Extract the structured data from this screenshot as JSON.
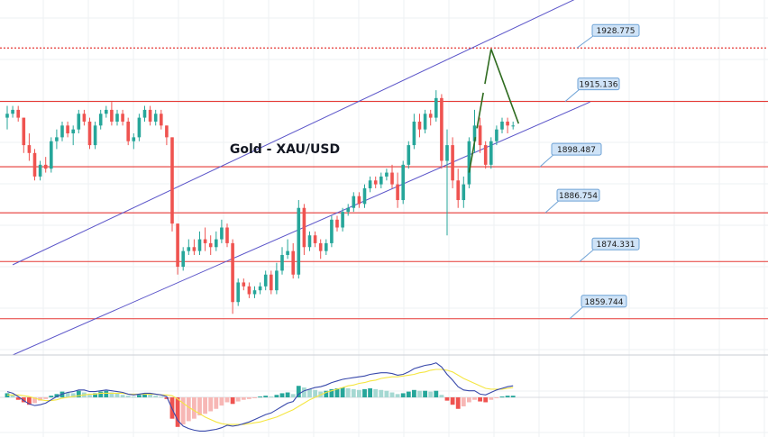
{
  "colors": {
    "background": "#ffffff",
    "grid": "#eef0f3",
    "level_line": "#e53935",
    "dotted_level": "#e53935",
    "channel": "#5b55c9",
    "forecast": "#2e6b1f",
    "bull": "#26a69a",
    "bear": "#ef5350",
    "label_fill": "#cfe3f7",
    "label_stroke": "#6fa3d6",
    "hist_pos": "#26a69a",
    "hist_pos_light": "#a5d8d2",
    "hist_neg": "#ef5350",
    "hist_neg_light": "#f7b7b5",
    "macd_line": "#3949ab",
    "signal_line": "#f5e642"
  },
  "chart_data": [
    {
      "type": "candlestick",
      "title": "Gold - XAU/USD",
      "ylim": [
        1850.5,
        1941
      ],
      "horizontal_levels": [
        1928.775,
        1915.136,
        1898.487,
        1886.754,
        1874.331,
        1859.744
      ],
      "level_labels": [
        "1928.775",
        "1915.136",
        "1898.487",
        "1886.754",
        "1874.331",
        "1859.744"
      ],
      "channel": {
        "upper": [
          [
            1,
            1873.5
          ],
          [
            106,
            1943
          ]
        ],
        "lower": [
          [
            1,
            1850.5
          ],
          [
            106,
            1915
          ]
        ]
      },
      "forecast_path": [
        [
          84,
          1897
        ],
        [
          88,
          1928.5
        ],
        [
          93,
          1909.5
        ]
      ],
      "candles": [
        [
          1911,
          1914,
          1908,
          1912
        ],
        [
          1912,
          1914,
          1911,
          1913
        ],
        [
          1913,
          1914,
          1910,
          1911
        ],
        [
          1911,
          1911,
          1902,
          1904
        ],
        [
          1904,
          1907,
          1900,
          1902
        ],
        [
          1902,
          1903,
          1895,
          1896
        ],
        [
          1896,
          1900,
          1895,
          1899
        ],
        [
          1899,
          1901,
          1897,
          1898
        ],
        [
          1898,
          1906,
          1897,
          1905
        ],
        [
          1905,
          1908,
          1903,
          1906
        ],
        [
          1906,
          1910,
          1905,
          1909
        ],
        [
          1909,
          1910,
          1906,
          1907
        ],
        [
          1907,
          1909,
          1904,
          1908
        ],
        [
          1908,
          1913,
          1907,
          1912
        ],
        [
          1912,
          1913,
          1909,
          1910
        ],
        [
          1910,
          1911,
          1903,
          1904
        ],
        [
          1904,
          1910,
          1903,
          1909
        ],
        [
          1909,
          1913,
          1908,
          1912
        ],
        [
          1912,
          1914,
          1911,
          1913
        ],
        [
          1913,
          1915,
          1909,
          1910
        ],
        [
          1910,
          1913,
          1909,
          1912
        ],
        [
          1912,
          1913,
          1909,
          1910
        ],
        [
          1910,
          1911,
          1904,
          1905
        ],
        [
          1905,
          1907,
          1903,
          1906
        ],
        [
          1906,
          1912,
          1905,
          1911
        ],
        [
          1911,
          1914,
          1910,
          1913
        ],
        [
          1913,
          1914,
          1909,
          1910
        ],
        [
          1910,
          1913,
          1909,
          1912
        ],
        [
          1912,
          1913,
          1908,
          1909
        ],
        [
          1909,
          1909,
          1904,
          1906
        ],
        [
          1906,
          1906,
          1882,
          1884
        ],
        [
          1884,
          1884,
          1871,
          1873
        ],
        [
          1873,
          1878,
          1872,
          1877
        ],
        [
          1877,
          1880,
          1876,
          1878
        ],
        [
          1878,
          1880,
          1876,
          1877
        ],
        [
          1877,
          1882,
          1876,
          1880
        ],
        [
          1880,
          1883,
          1877,
          1879
        ],
        [
          1879,
          1881,
          1876,
          1878
        ],
        [
          1878,
          1882,
          1877,
          1880
        ],
        [
          1880,
          1885,
          1879,
          1883
        ],
        [
          1883,
          1884,
          1878,
          1879
        ],
        [
          1879,
          1880,
          1861,
          1864
        ],
        [
          1864,
          1870,
          1863,
          1869
        ],
        [
          1869,
          1870,
          1867,
          1868
        ],
        [
          1868,
          1869,
          1865,
          1866
        ],
        [
          1866,
          1868,
          1865,
          1867
        ],
        [
          1867,
          1869,
          1866,
          1868
        ],
        [
          1868,
          1872,
          1867,
          1871
        ],
        [
          1871,
          1872,
          1866,
          1867
        ],
        [
          1867,
          1874,
          1866,
          1872
        ],
        [
          1872,
          1878,
          1871,
          1876
        ],
        [
          1876,
          1880,
          1875,
          1877
        ],
        [
          1877,
          1879,
          1870,
          1871
        ],
        [
          1871,
          1890,
          1870,
          1888
        ],
        [
          1888,
          1889,
          1876,
          1878
        ],
        [
          1878,
          1882,
          1877,
          1881
        ],
        [
          1881,
          1882,
          1878,
          1879
        ],
        [
          1879,
          1880,
          1875,
          1877
        ],
        [
          1877,
          1880,
          1876,
          1879
        ],
        [
          1879,
          1886,
          1878,
          1885
        ],
        [
          1885,
          1886,
          1882,
          1883
        ],
        [
          1883,
          1888,
          1882,
          1887
        ],
        [
          1887,
          1889,
          1886,
          1888
        ],
        [
          1888,
          1892,
          1887,
          1891
        ],
        [
          1891,
          1892,
          1888,
          1889
        ],
        [
          1889,
          1894,
          1888,
          1893
        ],
        [
          1893,
          1896,
          1892,
          1895
        ],
        [
          1895,
          1896,
          1893,
          1894
        ],
        [
          1894,
          1897,
          1893,
          1896
        ],
        [
          1896,
          1898,
          1895,
          1897
        ],
        [
          1897,
          1899,
          1893,
          1894
        ],
        [
          1894,
          1897,
          1888,
          1890
        ],
        [
          1890,
          1900,
          1889,
          1899
        ],
        [
          1899,
          1905,
          1898,
          1904
        ],
        [
          1904,
          1912,
          1903,
          1910
        ],
        [
          1910,
          1912,
          1906,
          1908
        ],
        [
          1908,
          1913,
          1907,
          1912
        ],
        [
          1912,
          1913,
          1909,
          1911
        ],
        [
          1911,
          1918,
          1910,
          1916
        ],
        [
          1916,
          1917,
          1898,
          1900
        ],
        [
          1900,
          1908,
          1881,
          1904
        ],
        [
          1904,
          1906,
          1893,
          1895
        ],
        [
          1895,
          1898,
          1888,
          1890
        ],
        [
          1890,
          1896,
          1888,
          1894
        ],
        [
          1894,
          1906,
          1893,
          1905
        ],
        [
          1905,
          1913,
          1902,
          1909
        ],
        [
          1909,
          1911,
          1902,
          1904
        ],
        [
          1904,
          1905,
          1898,
          1899
        ],
        [
          1899,
          1906,
          1898,
          1905
        ],
        [
          1905,
          1909,
          1904,
          1908
        ],
        [
          1908,
          1911,
          1907,
          1910
        ],
        [
          1910,
          1911,
          1907,
          1909
        ],
        [
          1909,
          1910,
          1908,
          1909
        ]
      ]
    },
    {
      "type": "macd",
      "histogram": [
        0.5,
        0.3,
        -0.3,
        -0.6,
        -0.9,
        -0.7,
        -0.4,
        -0.2,
        0.2,
        0.4,
        0.7,
        0.6,
        0.5,
        0.8,
        0.6,
        0.3,
        0.5,
        0.7,
        0.8,
        0.6,
        0.5,
        0.3,
        0.2,
        0.1,
        0.3,
        0.5,
        0.4,
        0.2,
        0.1,
        -0.2,
        -2.6,
        -3.6,
        -3.3,
        -2.9,
        -2.6,
        -2.2,
        -2.0,
        -1.7,
        -1.4,
        -1.0,
        -0.6,
        -0.8,
        -0.5,
        -0.3,
        -0.2,
        -0.1,
        0.1,
        0.2,
        0.1,
        0.3,
        0.5,
        0.6,
        0.4,
        1.4,
        1.2,
        1.0,
        0.9,
        0.7,
        0.8,
        1.0,
        1.1,
        1.2,
        1.1,
        1.0,
        0.9,
        1.0,
        1.1,
        1.0,
        0.9,
        0.8,
        0.6,
        0.4,
        0.5,
        0.7,
        0.9,
        0.8,
        0.8,
        0.7,
        0.8,
        0.3,
        -0.4,
        -0.9,
        -1.4,
        -1.1,
        -0.6,
        -0.3,
        -0.5,
        -0.6,
        -0.3,
        -0.1,
        0.1,
        0.2,
        0.2
      ],
      "macd_line": [
        0.7,
        0.5,
        0.1,
        -0.4,
        -0.8,
        -1.0,
        -0.9,
        -0.7,
        -0.3,
        0.1,
        0.4,
        0.6,
        0.7,
        0.9,
        0.9,
        0.7,
        0.7,
        0.8,
        0.9,
        0.8,
        0.7,
        0.6,
        0.4,
        0.3,
        0.4,
        0.5,
        0.5,
        0.4,
        0.3,
        0.1,
        -1.4,
        -2.8,
        -3.5,
        -3.8,
        -4.0,
        -4.1,
        -4.1,
        -4.0,
        -3.9,
        -3.7,
        -3.4,
        -3.5,
        -3.4,
        -3.2,
        -3.0,
        -2.7,
        -2.4,
        -2.1,
        -1.9,
        -1.5,
        -1.1,
        -0.7,
        -0.5,
        0.4,
        0.8,
        1.0,
        1.2,
        1.3,
        1.5,
        1.8,
        2.0,
        2.2,
        2.3,
        2.4,
        2.5,
        2.6,
        2.8,
        2.9,
        3.0,
        3.0,
        2.9,
        2.7,
        2.8,
        3.1,
        3.5,
        3.7,
        3.9,
        4.0,
        4.2,
        3.7,
        2.8,
        2.1,
        1.3,
        0.9,
        0.8,
        0.8,
        0.4,
        0.3,
        0.6,
        0.9,
        1.1,
        1.3,
        1.4
      ],
      "signal_line": [
        0.3,
        0.3,
        0.3,
        0.2,
        0.1,
        -0.1,
        -0.3,
        -0.4,
        -0.4,
        -0.3,
        -0.1,
        0.0,
        0.1,
        0.2,
        0.3,
        0.4,
        0.4,
        0.5,
        0.5,
        0.5,
        0.5,
        0.5,
        0.4,
        0.4,
        0.4,
        0.4,
        0.4,
        0.4,
        0.3,
        0.3,
        0.2,
        -0.2,
        -0.7,
        -1.2,
        -1.6,
        -2.0,
        -2.4,
        -2.7,
        -3.0,
        -3.2,
        -3.3,
        -3.3,
        -3.3,
        -3.3,
        -3.2,
        -3.1,
        -3.0,
        -2.8,
        -2.6,
        -2.4,
        -2.1,
        -1.8,
        -1.5,
        -1.1,
        -0.7,
        -0.3,
        0.0,
        0.3,
        0.6,
        0.8,
        1.0,
        1.2,
        1.4,
        1.5,
        1.7,
        1.8,
        2.0,
        2.1,
        2.3,
        2.4,
        2.5,
        2.5,
        2.6,
        2.7,
        2.8,
        3.0,
        3.1,
        3.3,
        3.4,
        3.4,
        3.3,
        3.1,
        2.7,
        2.3,
        2.0,
        1.7,
        1.4,
        1.1,
        1.0,
        1.0,
        1.0,
        1.1,
        1.2
      ],
      "ylim": [
        -4.5,
        4.5
      ]
    }
  ]
}
